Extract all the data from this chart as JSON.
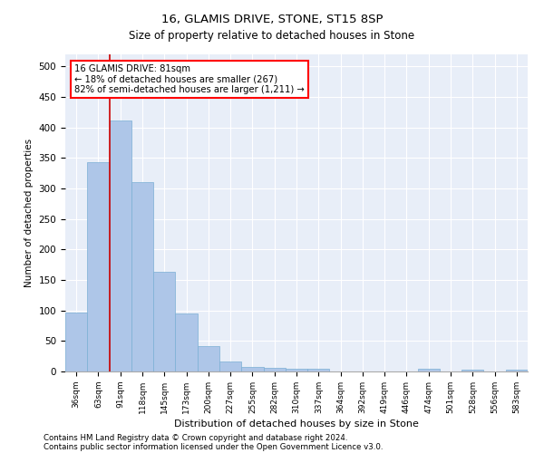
{
  "title1": "16, GLAMIS DRIVE, STONE, ST15 8SP",
  "title2": "Size of property relative to detached houses in Stone",
  "xlabel": "Distribution of detached houses by size in Stone",
  "ylabel": "Number of detached properties",
  "annotation_title": "16 GLAMIS DRIVE: 81sqm",
  "annotation_line1": "← 18% of detached houses are smaller (267)",
  "annotation_line2": "82% of semi-detached houses are larger (1,211) →",
  "footnote1": "Contains HM Land Registry data © Crown copyright and database right 2024.",
  "footnote2": "Contains public sector information licensed under the Open Government Licence v3.0.",
  "bar_color": "#aec6e8",
  "bar_edge_color": "#7aafd4",
  "redline_color": "#cc0000",
  "background_color": "#e8eef8",
  "categories": [
    "36sqm",
    "63sqm",
    "91sqm",
    "118sqm",
    "145sqm",
    "173sqm",
    "200sqm",
    "227sqm",
    "255sqm",
    "282sqm",
    "310sqm",
    "337sqm",
    "364sqm",
    "392sqm",
    "419sqm",
    "446sqm",
    "474sqm",
    "501sqm",
    "528sqm",
    "556sqm",
    "583sqm"
  ],
  "values": [
    97,
    343,
    412,
    311,
    163,
    95,
    42,
    17,
    8,
    6,
    5,
    4,
    0,
    0,
    0,
    0,
    4,
    0,
    3,
    0,
    3
  ],
  "redline_x": 1.5,
  "ylim": [
    0,
    520
  ],
  "yticks": [
    0,
    50,
    100,
    150,
    200,
    250,
    300,
    350,
    400,
    450,
    500
  ]
}
